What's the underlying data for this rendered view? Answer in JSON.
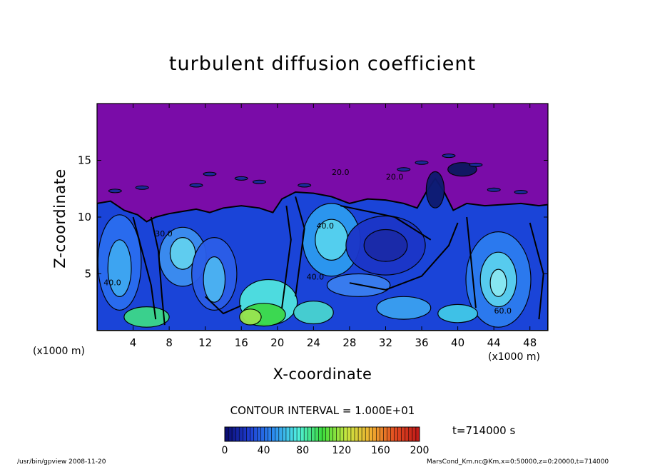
{
  "chart_data": {
    "type": "contour",
    "title": "turbulent diffusion coefficient",
    "xlabel": "X-coordinate",
    "ylabel": "Z-coordinate",
    "x_unit_label": "(x1000 m)",
    "x_ticks": [
      4,
      8,
      12,
      16,
      20,
      24,
      28,
      32,
      36,
      40,
      44,
      48
    ],
    "y_ticks": [
      5,
      10,
      15
    ],
    "xlim": [
      0,
      50
    ],
    "ylim": [
      0,
      20
    ],
    "contour_interval_text": "CONTOUR INTERVAL = 1.000E+01",
    "colorbar": {
      "ticks": [
        0,
        40,
        80,
        120,
        160,
        200
      ],
      "range": [
        0,
        200
      ],
      "colors": [
        "#0a0a6e",
        "#1e3cd2",
        "#2c8cf0",
        "#50f0e0",
        "#3cdc3c",
        "#c8e640",
        "#f0b030",
        "#e04a20",
        "#c01818"
      ]
    },
    "contour_labels": [
      {
        "text": "20.0",
        "x": 27,
        "y": 13.7
      },
      {
        "text": "20.0",
        "x": 33,
        "y": 13.3
      },
      {
        "text": "40.0",
        "x": 25.3,
        "y": 9.0
      },
      {
        "text": "40.0",
        "x": 24.2,
        "y": 4.5
      },
      {
        "text": "60.0",
        "x": 45,
        "y": 1.5
      },
      {
        "text": "40.0",
        "x": 1.7,
        "y": 4.0
      },
      {
        "text": "30.0",
        "x": 7.4,
        "y": 8.3
      }
    ],
    "background_color": "#7a0ca8",
    "time_label": "t=714000 s"
  },
  "footer": {
    "program": "/usr/bin/gpview   2008-11-20",
    "file_info": "MarsCond_Km.nc@Km,x=0:50000,z=0:20000,t=714000"
  }
}
